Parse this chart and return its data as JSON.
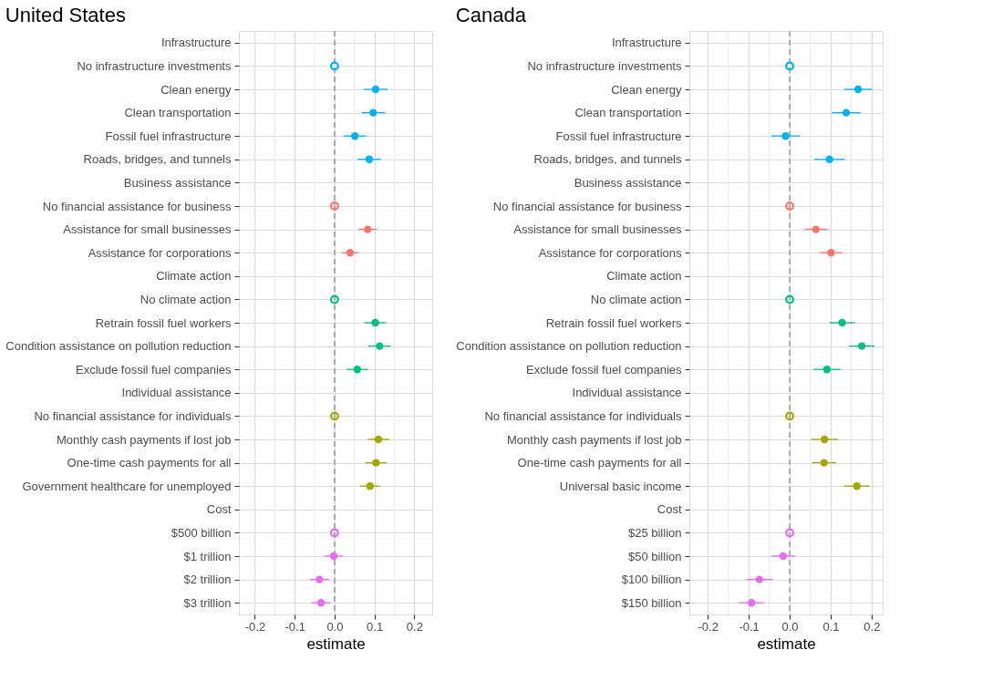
{
  "chart_data": [
    {
      "type": "scatter",
      "orientation": "horizontal",
      "title": "United States",
      "xlabel": "estimate",
      "grid": true,
      "legend": false,
      "marker": "circle",
      "categories": [
        "Infrastructure",
        "No infrastructure investments",
        "Clean energy",
        "Clean transportation",
        "Fossil fuel infrastructure",
        "Roads, bridges, and tunnels",
        "Business assistance",
        "No financial assistance for business",
        "Assistance for small businesses",
        "Assistance for corporations",
        "Climate action",
        "No climate action",
        "Retrain fossil fuel workers",
        "Condition assistance on pollution reduction",
        "Exclude fossil fuel companies",
        "Individual assistance",
        "No financial assistance for individuals",
        "Monthly cash payments if lost job",
        "One-time cash payments for all",
        "Government healthcare for unemployed",
        "Cost",
        "$500 billion",
        "$1 trillion",
        "$2 trillion",
        "$3 trillion"
      ],
      "xlim": [
        -0.24,
        0.245
      ],
      "xticks": [
        {
          "value": -0.2,
          "label": "-0.2"
        },
        {
          "value": -0.15,
          "label": null
        },
        {
          "value": -0.1,
          "label": "-0.1"
        },
        {
          "value": -0.05,
          "label": null
        },
        {
          "value": 0,
          "label": "0.0"
        },
        {
          "value": 0.05,
          "label": null
        },
        {
          "value": 0.1,
          "label": "0.1"
        },
        {
          "value": 0.15,
          "label": null
        },
        {
          "value": 0.2,
          "label": "0.2"
        }
      ],
      "ref_lines": [
        {
          "axis": "x",
          "value": 0,
          "color": "#999999",
          "line_style": "dashed"
        }
      ],
      "series": [
        {
          "color": "#00b0f6",
          "values": [
            null,
            0,
            0.103,
            0.097,
            0.051,
            0.087,
            null,
            null,
            null,
            null,
            null,
            null,
            null,
            null,
            null,
            null,
            null,
            null,
            null,
            null,
            null,
            null,
            null,
            null,
            null
          ],
          "errors": [
            null,
            null,
            0.03,
            0.029,
            0.028,
            0.029,
            null,
            null,
            null,
            null,
            null,
            null,
            null,
            null,
            null,
            null,
            null,
            null,
            null,
            null,
            null,
            null,
            null,
            null,
            null
          ]
        },
        {
          "color": "#f8766d",
          "values": [
            null,
            null,
            null,
            null,
            null,
            null,
            null,
            0,
            0.083,
            0.039,
            null,
            null,
            null,
            null,
            null,
            null,
            null,
            null,
            null,
            null,
            null,
            null,
            null,
            null,
            null
          ],
          "errors": [
            null,
            null,
            null,
            null,
            null,
            null,
            null,
            null,
            0.023,
            0.022,
            null,
            null,
            null,
            null,
            null,
            null,
            null,
            null,
            null,
            null,
            null,
            null,
            null,
            null,
            null
          ]
        },
        {
          "color": "#00bf7d",
          "values": [
            null,
            null,
            null,
            null,
            null,
            null,
            null,
            null,
            null,
            null,
            null,
            0,
            0.102,
            0.113,
            0.057,
            null,
            null,
            null,
            null,
            null,
            null,
            null,
            null,
            null,
            null
          ],
          "errors": [
            null,
            null,
            null,
            null,
            null,
            null,
            null,
            null,
            null,
            null,
            null,
            null,
            0.027,
            0.028,
            0.027,
            null,
            null,
            null,
            null,
            null,
            null,
            null,
            null,
            null,
            null
          ]
        },
        {
          "color": "#a3a500",
          "values": [
            null,
            null,
            null,
            null,
            null,
            null,
            null,
            null,
            null,
            null,
            null,
            null,
            null,
            null,
            null,
            null,
            0,
            0.11,
            0.104,
            0.089,
            null,
            null,
            null,
            null,
            null
          ],
          "errors": [
            null,
            null,
            null,
            null,
            null,
            null,
            null,
            null,
            null,
            null,
            null,
            null,
            null,
            null,
            null,
            null,
            null,
            0.027,
            0.027,
            0.025,
            null,
            null,
            null,
            null,
            null
          ]
        },
        {
          "color": "#e76bf3",
          "values": [
            null,
            null,
            null,
            null,
            null,
            null,
            null,
            null,
            null,
            null,
            null,
            null,
            null,
            null,
            null,
            null,
            null,
            null,
            null,
            null,
            null,
            0,
            -0.002,
            -0.038,
            -0.034
          ],
          "errors": [
            null,
            null,
            null,
            null,
            null,
            null,
            null,
            null,
            null,
            null,
            null,
            null,
            null,
            null,
            null,
            null,
            null,
            null,
            null,
            null,
            null,
            null,
            0.024,
            0.024,
            0.024
          ]
        }
      ]
    },
    {
      "type": "scatter",
      "orientation": "horizontal",
      "title": "Canada",
      "xlabel": "estimate",
      "grid": true,
      "legend": false,
      "marker": "circle",
      "categories": [
        "Infrastructure",
        "No infrastructure investments",
        "Clean energy",
        "Clean transportation",
        "Fossil fuel infrastructure",
        "Roads, bridges, and tunnels",
        "Business assistance",
        "No financial assistance for business",
        "Assistance for small businesses",
        "Assistance for corporations",
        "Climate action",
        "No climate action",
        "Retrain fossil fuel workers",
        "Condition assistance on pollution reduction",
        "Exclude fossil fuel companies",
        "Individual assistance",
        "No financial assistance for individuals",
        "Monthly cash payments if lost job",
        "One-time cash payments for all",
        "Universal basic income",
        "Cost",
        "$25 billion",
        "$50 billion",
        "$100 billion",
        "$150 billion"
      ],
      "xlim": [
        -0.245,
        0.227
      ],
      "xticks": [
        {
          "value": -0.2,
          "label": "-0.2"
        },
        {
          "value": -0.15,
          "label": null
        },
        {
          "value": -0.1,
          "label": "-0.1"
        },
        {
          "value": -0.05,
          "label": null
        },
        {
          "value": 0,
          "label": "0.0"
        },
        {
          "value": 0.05,
          "label": null
        },
        {
          "value": 0.1,
          "label": "0.1"
        },
        {
          "value": 0.15,
          "label": null
        },
        {
          "value": 0.2,
          "label": "0.2"
        }
      ],
      "ref_lines": [
        {
          "axis": "x",
          "value": 0,
          "color": "#999999",
          "line_style": "dashed"
        }
      ],
      "series": [
        {
          "color": "#00b0f6",
          "values": [
            null,
            0,
            0.167,
            0.138,
            -0.01,
            0.097,
            null,
            null,
            null,
            null,
            null,
            null,
            null,
            null,
            null,
            null,
            null,
            null,
            null,
            null,
            null,
            null,
            null,
            null,
            null
          ],
          "errors": [
            null,
            null,
            0.034,
            0.035,
            0.035,
            0.037,
            null,
            null,
            null,
            null,
            null,
            null,
            null,
            null,
            null,
            null,
            null,
            null,
            null,
            null,
            null,
            null,
            null,
            null,
            null
          ]
        },
        {
          "color": "#f8766d",
          "values": [
            null,
            null,
            null,
            null,
            null,
            null,
            null,
            0,
            0.064,
            0.101,
            null,
            null,
            null,
            null,
            null,
            null,
            null,
            null,
            null,
            null,
            null,
            null,
            null,
            null,
            null
          ],
          "errors": [
            null,
            null,
            null,
            null,
            null,
            null,
            null,
            null,
            0.028,
            0.027,
            null,
            null,
            null,
            null,
            null,
            null,
            null,
            null,
            null,
            null,
            null,
            null,
            null,
            null,
            null
          ]
        },
        {
          "color": "#00bf7d",
          "values": [
            null,
            null,
            null,
            null,
            null,
            null,
            null,
            null,
            null,
            null,
            null,
            0,
            0.128,
            0.176,
            0.091,
            null,
            null,
            null,
            null,
            null,
            null,
            null,
            null,
            null,
            null
          ],
          "errors": [
            null,
            null,
            null,
            null,
            null,
            null,
            null,
            null,
            null,
            null,
            null,
            null,
            0.031,
            0.031,
            0.033,
            null,
            null,
            null,
            null,
            null,
            null,
            null,
            null,
            null,
            null
          ]
        },
        {
          "color": "#a3a500",
          "values": [
            null,
            null,
            null,
            null,
            null,
            null,
            null,
            null,
            null,
            null,
            null,
            null,
            null,
            null,
            null,
            null,
            0,
            0.085,
            0.084,
            0.164,
            null,
            null,
            null,
            null,
            null
          ],
          "errors": [
            null,
            null,
            null,
            null,
            null,
            null,
            null,
            null,
            null,
            null,
            null,
            null,
            null,
            null,
            null,
            null,
            null,
            0.033,
            0.029,
            0.031,
            null,
            null,
            null,
            null,
            null
          ]
        },
        {
          "color": "#e76bf3",
          "values": [
            null,
            null,
            null,
            null,
            null,
            null,
            null,
            null,
            null,
            null,
            null,
            null,
            null,
            null,
            null,
            null,
            null,
            null,
            null,
            null,
            null,
            0,
            -0.016,
            -0.074,
            -0.093
          ],
          "errors": [
            null,
            null,
            null,
            null,
            null,
            null,
            null,
            null,
            null,
            null,
            null,
            null,
            null,
            null,
            null,
            null,
            null,
            null,
            null,
            null,
            null,
            null,
            0.028,
            0.032,
            0.031
          ]
        }
      ]
    }
  ]
}
